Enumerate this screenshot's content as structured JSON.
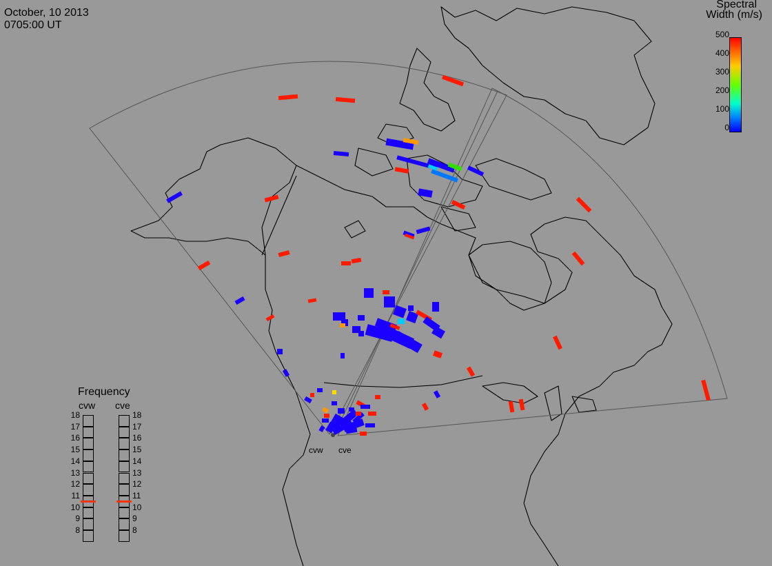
{
  "header": {
    "date": "October, 10 2013",
    "time": "0705:00 UT"
  },
  "colorbar": {
    "title_line1": "Spectral",
    "title_line2": "Width (m/s)",
    "ticks": [
      "500",
      "400",
      "300",
      "200",
      "100",
      "0"
    ],
    "colors": [
      "#ff0000",
      "#ff8000",
      "#ffff00",
      "#00ff00",
      "#00ffff",
      "#0000ff"
    ]
  },
  "frequency_panel": {
    "title": "Frequency",
    "radars": [
      "cvw",
      "cve"
    ],
    "scale": [
      "18",
      "17",
      "16",
      "15",
      "14",
      "13",
      "12",
      "11",
      "10",
      "9",
      "8"
    ],
    "current_mhz": {
      "cvw": 10.5,
      "cve": 10.5
    },
    "marker_color": "#ff3300"
  },
  "sites": {
    "west": "cvw",
    "east": "cve"
  },
  "map_colors": {
    "background": "#999999",
    "coast": "#000000",
    "fov": "#555555"
  }
}
